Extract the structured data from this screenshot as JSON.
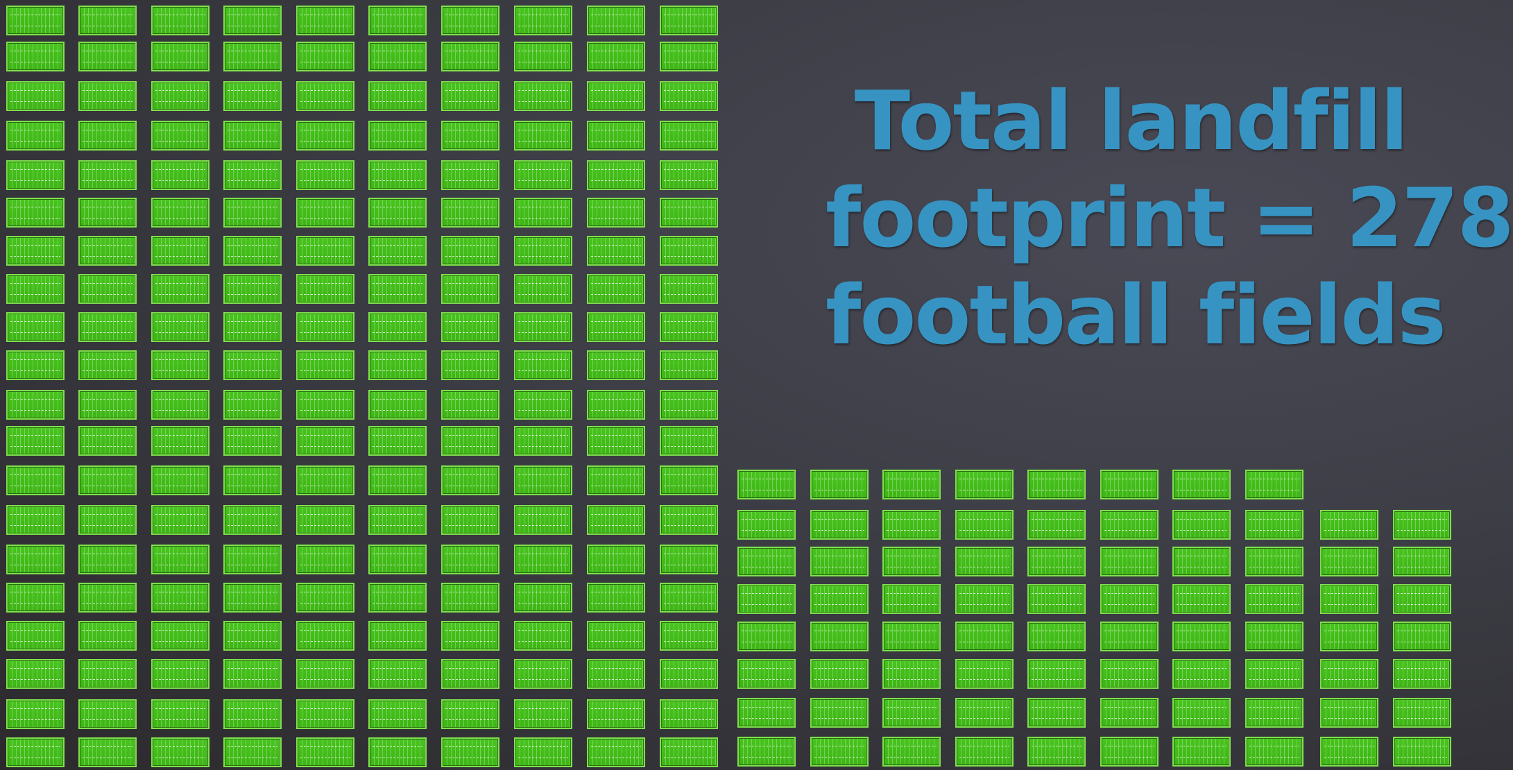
{
  "headline": {
    "line1": "Total landfill",
    "line2": "footprint = 278",
    "line3": "football fields"
  },
  "fields": {
    "icon": "football-field-icon",
    "count": 278,
    "color": "#3db514"
  },
  "colors": {
    "headline": "#3794c2",
    "background": "#3a3a42"
  }
}
